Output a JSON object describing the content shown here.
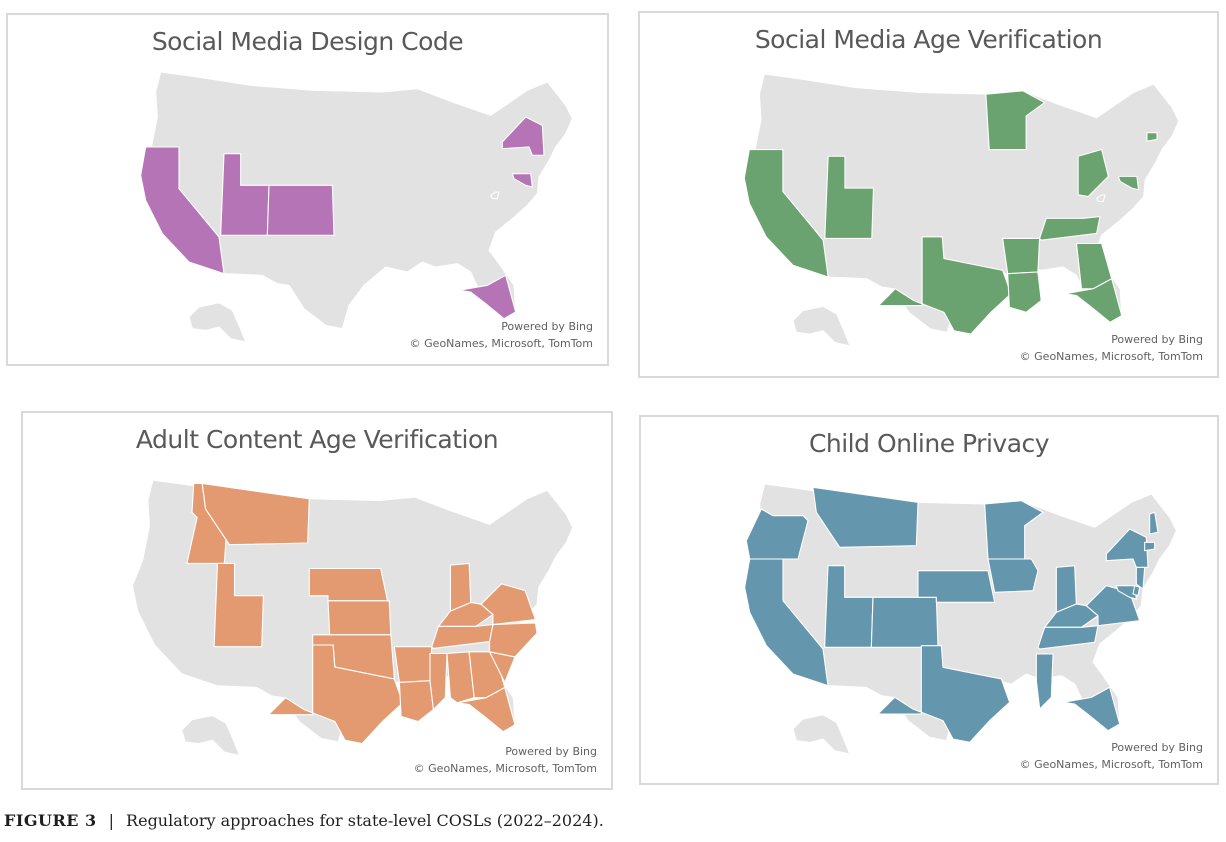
{
  "figure": {
    "label": "FIGURE 3",
    "separator": "|",
    "caption": "Regulatory approaches for state-level COSLs (2022–2024)."
  },
  "base_color": "#e2e2e2",
  "maps": [
    {
      "title": "Social Media Design Code",
      "fill": "#b574b5",
      "states": [
        "CA",
        "UT",
        "CO",
        "NY",
        "MD",
        "FL"
      ],
      "credit_line1": "Powered by Bing",
      "credit_line2": "© GeoNames, Microsoft, TomTom"
    },
    {
      "title": "Social Media Age Verification",
      "fill": "#6aa36f",
      "states": [
        "CA",
        "UT",
        "TX",
        "AR",
        "LA",
        "MN",
        "OH",
        "TN",
        "GA",
        "FL",
        "CT",
        "MD"
      ],
      "credit_line1": "Powered by Bing",
      "credit_line2": "© GeoNames, Microsoft, TomTom"
    },
    {
      "title": "Adult Content Age Verification",
      "fill": "#e39a70",
      "states": [
        "ID",
        "MT",
        "UT",
        "NE",
        "KS",
        "OK",
        "TX",
        "AR",
        "LA",
        "MS",
        "AL",
        "GA",
        "FL",
        "SC",
        "NC",
        "TN",
        "KY",
        "VA",
        "IN"
      ],
      "credit_line1": "Powered by Bing",
      "credit_line2": "© GeoNames, Microsoft, TomTom"
    },
    {
      "title": "Child Online Privacy",
      "fill": "#6497ad",
      "states": [
        "OR",
        "CA",
        "MT",
        "UT",
        "CO",
        "NE",
        "TX",
        "MN",
        "IA",
        "IN",
        "KY",
        "TN",
        "MS",
        "FL",
        "VA",
        "MD",
        "DE",
        "NJ",
        "NY",
        "NH",
        "CT"
      ],
      "credit_line1": "Powered by Bing",
      "credit_line2": "© GeoNames, Microsoft, TomTom"
    }
  ]
}
